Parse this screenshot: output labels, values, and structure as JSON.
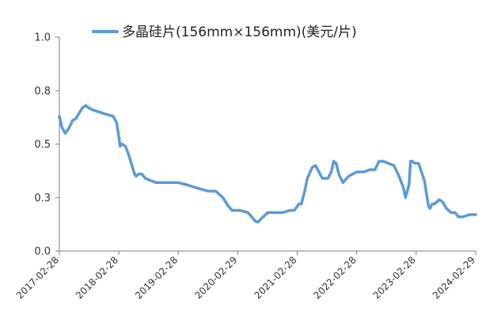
{
  "chart_data": {
    "type": "line",
    "title": "",
    "xlabel": "",
    "ylabel": "",
    "ylim": [
      0,
      1.0
    ],
    "y_ticks": [
      "0.0",
      "0.3",
      "0.5",
      "0.8",
      "1.0"
    ],
    "y_tick_values": [
      0,
      0.25,
      0.5,
      0.75,
      1.0
    ],
    "x_ticks": [
      "2017-02-28",
      "2018-02-28",
      "2019-02-28",
      "2020-02-29",
      "2021-02-28",
      "2022-02-28",
      "2023-02-28",
      "2024-02-29"
    ],
    "grid": false,
    "legend_position": "top",
    "series": [
      {
        "name": "多晶硅片(156mm×156mm)(美元/片)",
        "color": "#5B9BD5",
        "x": [
          "2017-02-28",
          "2017-03-15",
          "2017-04-05",
          "2017-04-25",
          "2017-05-20",
          "2017-06-10",
          "2017-07-20",
          "2017-08-10",
          "2017-08-25",
          "2017-09-20",
          "2017-10-30",
          "2017-12-10",
          "2018-01-25",
          "2018-02-15",
          "2018-03-01",
          "2018-03-08",
          "2018-03-20",
          "2018-04-10",
          "2018-04-30",
          "2018-05-20",
          "2018-06-05",
          "2018-06-15",
          "2018-07-01",
          "2018-07-20",
          "2018-08-10",
          "2018-09-10",
          "2018-10-15",
          "2018-11-20",
          "2019-01-10",
          "2019-03-01",
          "2019-04-20",
          "2019-06-01",
          "2019-07-15",
          "2019-08-30",
          "2019-10-15",
          "2019-11-30",
          "2020-01-01",
          "2020-01-25",
          "2020-03-15",
          "2020-04-30",
          "2020-05-25",
          "2020-06-15",
          "2020-07-01",
          "2020-07-20",
          "2020-08-10",
          "2020-09-01",
          "2020-10-15",
          "2020-12-01",
          "2021-01-15",
          "2021-02-10",
          "2021-03-10",
          "2021-03-25",
          "2021-04-15",
          "2021-05-01",
          "2021-05-30",
          "2021-06-20",
          "2021-08-01",
          "2021-08-20",
          "2021-09-05",
          "2021-09-25",
          "2021-10-10",
          "2021-10-25",
          "2021-11-10",
          "2021-12-05",
          "2022-01-10",
          "2022-03-01",
          "2022-04-15",
          "2022-05-20",
          "2022-06-20",
          "2022-07-15",
          "2022-08-10",
          "2022-09-10",
          "2022-10-15",
          "2022-11-15",
          "2022-12-10",
          "2022-12-25",
          "2023-01-15",
          "2023-01-25",
          "2023-02-05",
          "2023-02-20",
          "2023-03-15",
          "2023-04-20",
          "2023-05-15",
          "2023-05-25",
          "2023-06-05",
          "2023-06-20",
          "2023-07-20",
          "2023-08-10",
          "2023-09-01",
          "2023-10-01",
          "2023-10-25",
          "2023-11-15",
          "2023-12-15",
          "2024-01-20",
          "2024-02-29"
        ],
        "y": [
          0.63,
          0.58,
          0.55,
          0.57,
          0.61,
          0.62,
          0.67,
          0.68,
          0.67,
          0.66,
          0.65,
          0.64,
          0.63,
          0.6,
          0.53,
          0.49,
          0.5,
          0.49,
          0.45,
          0.4,
          0.36,
          0.35,
          0.36,
          0.36,
          0.34,
          0.33,
          0.32,
          0.32,
          0.32,
          0.32,
          0.31,
          0.3,
          0.29,
          0.28,
          0.28,
          0.25,
          0.21,
          0.19,
          0.19,
          0.18,
          0.16,
          0.14,
          0.135,
          0.15,
          0.165,
          0.18,
          0.18,
          0.18,
          0.19,
          0.19,
          0.22,
          0.22,
          0.28,
          0.34,
          0.39,
          0.4,
          0.34,
          0.34,
          0.34,
          0.37,
          0.42,
          0.41,
          0.36,
          0.32,
          0.35,
          0.37,
          0.37,
          0.38,
          0.38,
          0.42,
          0.42,
          0.41,
          0.4,
          0.35,
          0.3,
          0.25,
          0.31,
          0.42,
          0.42,
          0.41,
          0.41,
          0.33,
          0.21,
          0.2,
          0.22,
          0.22,
          0.24,
          0.23,
          0.2,
          0.18,
          0.18,
          0.16,
          0.16,
          0.17,
          0.17
        ]
      }
    ]
  }
}
